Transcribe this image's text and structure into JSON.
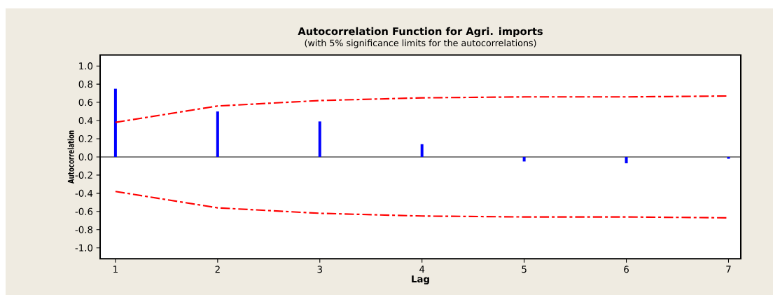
{
  "chart_data": {
    "type": "bar",
    "title": "Autocorrelation Function for Agri. imports",
    "subtitle": "(with 5% significance limits for the autocorrelations)",
    "xlabel": "Lag",
    "ylabel": "Autocorrelation",
    "x": [
      1,
      2,
      3,
      4,
      5,
      6,
      7
    ],
    "xlim": [
      0.85,
      7.12
    ],
    "ylim": [
      -1.12,
      1.12
    ],
    "xticks": [
      1,
      2,
      3,
      4,
      5,
      6,
      7
    ],
    "yticks": [
      {
        "value": 1.0,
        "label": "1.0"
      },
      {
        "value": 0.8,
        "label": "0.8"
      },
      {
        "value": 0.6,
        "label": "0.6"
      },
      {
        "value": 0.4,
        "label": "0.4"
      },
      {
        "value": 0.2,
        "label": "0.2"
      },
      {
        "value": 0.0,
        "label": "0.0"
      },
      {
        "value": -0.2,
        "label": "-0.2"
      },
      {
        "value": -0.4,
        "label": "-0.4"
      },
      {
        "value": -0.6,
        "label": "-0.6"
      },
      {
        "value": -0.8,
        "label": "-0.8"
      },
      {
        "value": -1.0,
        "label": "-1.0"
      }
    ],
    "series": [
      {
        "color": "#0000ff",
        "values": [
          0.75,
          0.5,
          0.39,
          0.14,
          -0.05,
          -0.07,
          -0.02
        ]
      },
      {
        "type": "line",
        "color": "#ff0000",
        "line_style": "dashed",
        "values": [
          0.38,
          0.56,
          0.62,
          0.65,
          0.66,
          0.66,
          0.67
        ]
      },
      {
        "type": "line",
        "color": "#ff0000",
        "line_style": "dashed",
        "values": [
          -0.38,
          -0.56,
          -0.62,
          -0.65,
          -0.66,
          -0.66,
          -0.67
        ]
      }
    ],
    "ref_lines": [
      {
        "axis": "y",
        "value": 0,
        "color": "#000000"
      }
    ]
  }
}
